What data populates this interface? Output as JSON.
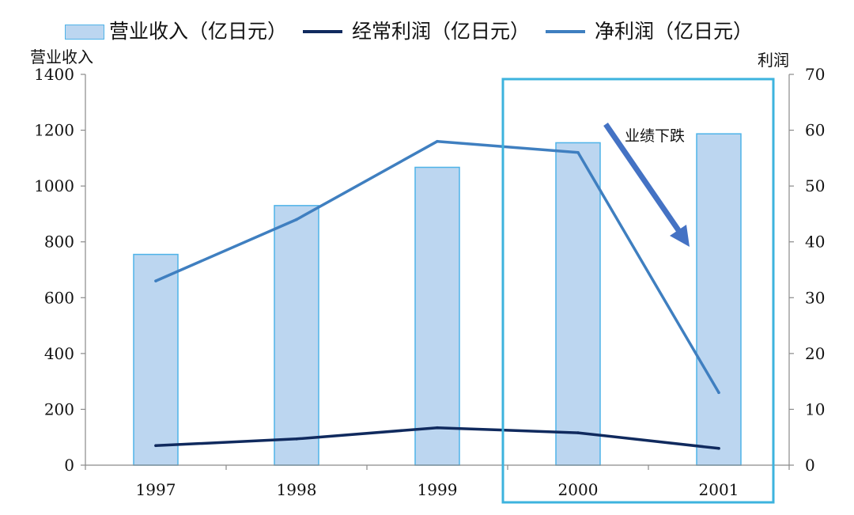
{
  "chart_data": {
    "type": "bar",
    "categories": [
      "1997",
      "1998",
      "1999",
      "2000",
      "2001"
    ],
    "series": [
      {
        "name": "营业收入（亿日元）",
        "chart": "bar",
        "axis": "left",
        "values": [
          755,
          930,
          1067,
          1155,
          1187
        ],
        "color": "#bcd6f0",
        "border_color": "#4fb3e8"
      },
      {
        "name": "经常利润（亿日元）",
        "chart": "line",
        "axis": "right",
        "values": [
          3.5,
          4.7,
          6.7,
          5.8,
          3.0
        ],
        "color": "#102a5e"
      },
      {
        "name": "净利润（亿日元）",
        "chart": "line",
        "axis": "right",
        "values": [
          33,
          44,
          58,
          56,
          13
        ],
        "color": "#3f7fc0"
      }
    ],
    "left_axis": {
      "title": "营业收入",
      "ylim": [
        0,
        1400
      ],
      "ticks": [
        "0",
        "200",
        "400",
        "600",
        "800",
        "1000",
        "1200",
        "1400"
      ]
    },
    "right_axis": {
      "title": "利润",
      "ylim": [
        0,
        70
      ],
      "ticks": [
        "0",
        "10",
        "20",
        "30",
        "40",
        "50",
        "60",
        "70"
      ]
    },
    "annotation": {
      "text": "业绩下跌",
      "highlight": [
        "2000",
        "2001"
      ],
      "arrow_color": "#4472c4",
      "box_color": "#3db3de"
    },
    "grid": false,
    "legend_position": "top"
  }
}
